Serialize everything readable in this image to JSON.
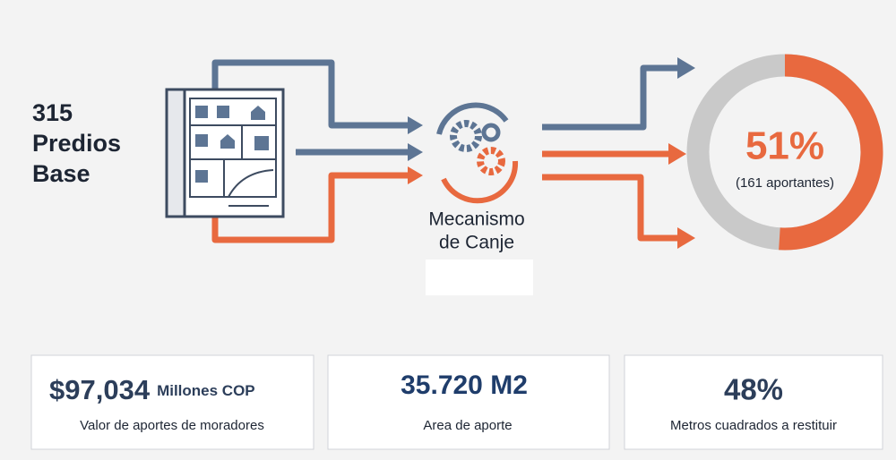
{
  "left_label": {
    "lines": [
      "315",
      "Predios",
      "Base"
    ]
  },
  "center_label": {
    "lines": [
      "Mecanismo",
      "de Canje"
    ]
  },
  "donut": {
    "value": 51,
    "label": "51%",
    "caption": "(161 aportantes)"
  },
  "cards": [
    {
      "value": "$97,034",
      "unit": "Millones COP",
      "caption": "Valor de aportes de moradores"
    },
    {
      "value": "35.720 M2",
      "caption": "Area de aporte"
    },
    {
      "value": "48%",
      "caption": "Metros cuadrados a restituir"
    }
  ]
}
